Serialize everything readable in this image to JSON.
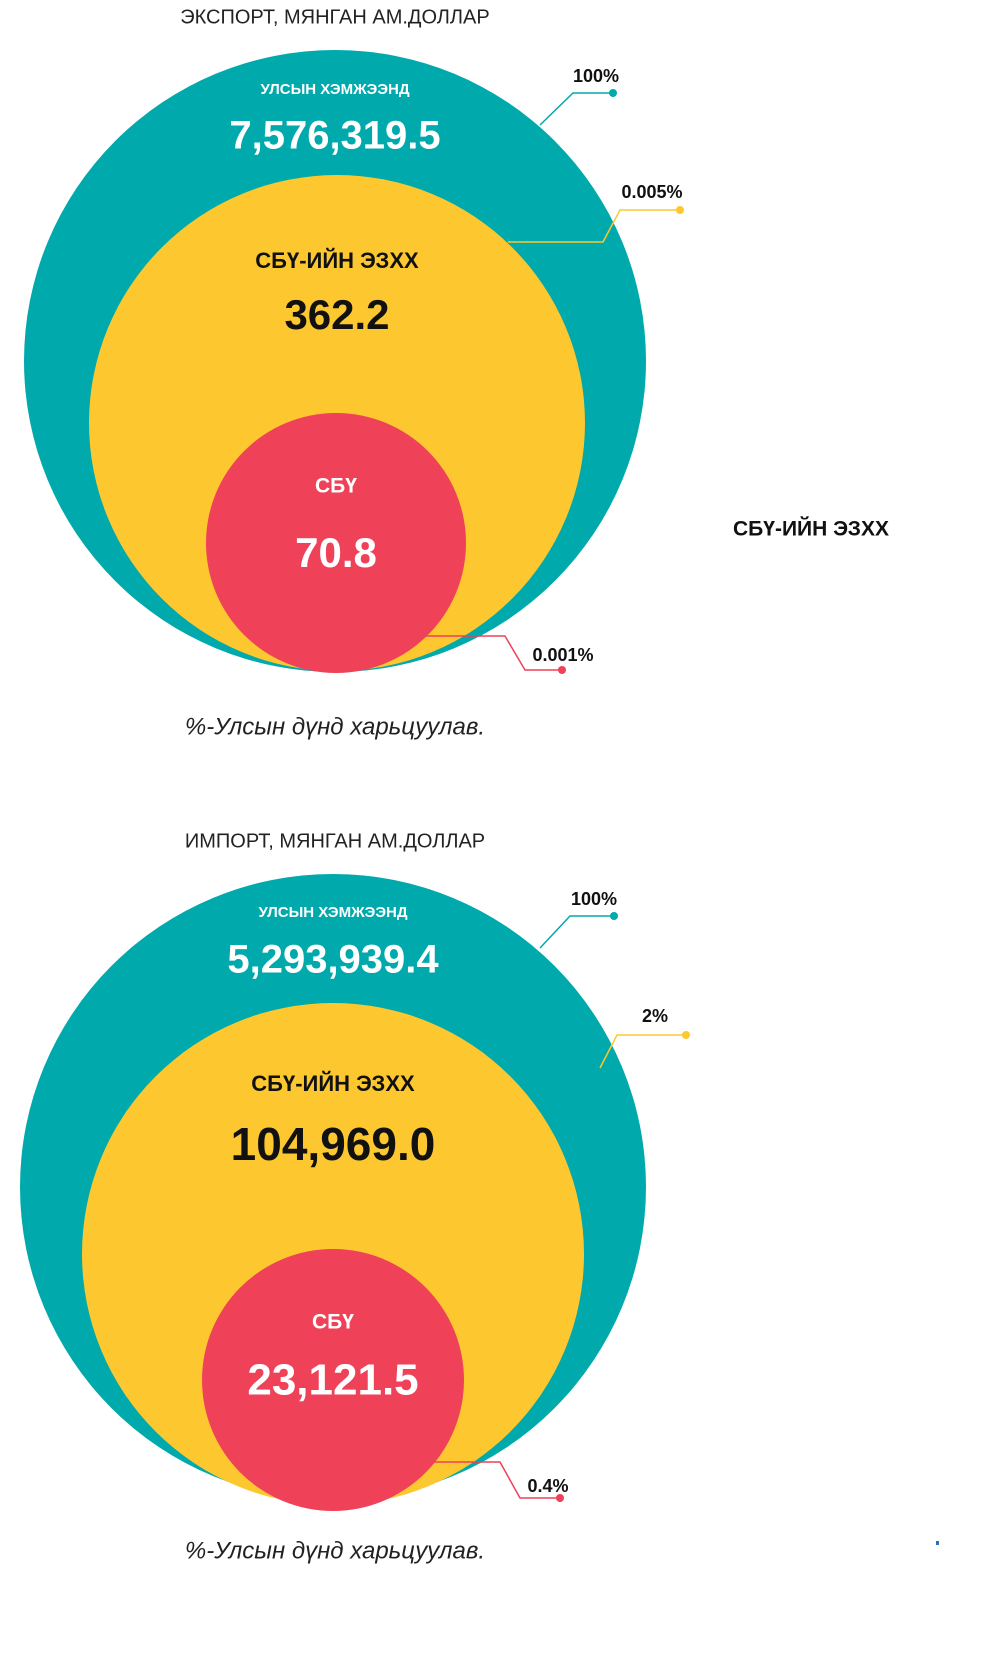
{
  "panels": [
    {
      "title": "ЭКСПОРТ, МЯНГАН АМ.ДОЛЛАР",
      "outer": {
        "label": "УЛСЫН ХЭМЖЭЭНД",
        "value": "7,576,319.5",
        "share": "100%"
      },
      "middle": {
        "label": "СБҮ-ИЙН ЭЗХХ",
        "value": "362.2",
        "share": "0.005%"
      },
      "inner": {
        "label": "СБҮ",
        "value": "70.8",
        "share": "0.001%"
      },
      "note": "%-Улсын дүнд харьцуулав."
    },
    {
      "title": "ИМПОРТ, МЯНГАН АМ.ДОЛЛАР",
      "outer": {
        "label": "УЛСЫН ХЭМЖЭЭНД",
        "value": "5,293,939.4",
        "share": "100%"
      },
      "middle": {
        "label": "СБҮ-ИЙН ЭЗХХ",
        "value": "104,969.0",
        "share": "2%"
      },
      "inner": {
        "label": "СБҮ",
        "value": "23,121.5",
        "share": "0.4%"
      },
      "note": "%-Улсын дүнд харьцуулав."
    }
  ],
  "side_label": "СБҮ-ИЙН ЭЗХХ"
}
